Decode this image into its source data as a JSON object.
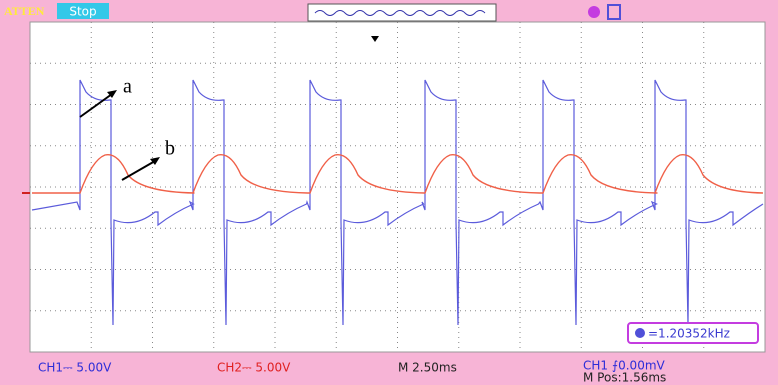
{
  "header": {
    "mode": "ATTEN",
    "status": "Stop"
  },
  "annotations": {
    "a": "a",
    "b": "b"
  },
  "frequency": "=1.20352kHz",
  "footer": {
    "ch1": "CH1⎓ 5.00V",
    "ch2": "CH2⎓ 5.00V",
    "timebase": "M 2.50ms",
    "trigger": "CH1 ⨍0.00mV",
    "position": "M Pos:1.56ms"
  }
}
